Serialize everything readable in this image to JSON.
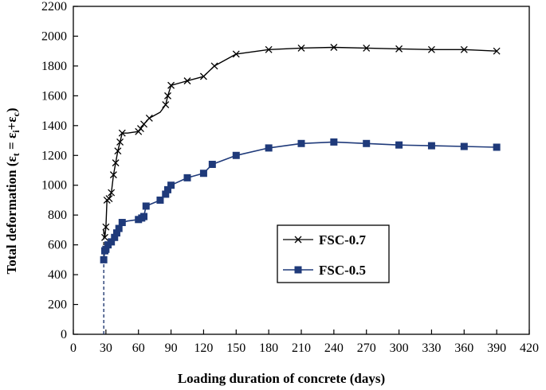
{
  "chart_data": {
    "type": "line",
    "title": "",
    "xlabel": "Loading duration of concrete (days)",
    "ylabel": {
      "prefix": "Total deformation (",
      "eps": "ε",
      "sub_t": "t",
      "eq": " = ",
      "sub_i": "i",
      "plus": "+",
      "sub_c": "c",
      "suffix": ")"
    },
    "xlim": [
      0,
      420
    ],
    "ylim": [
      0,
      2200
    ],
    "x_ticks": [
      "0",
      "30",
      "60",
      "90",
      "120",
      "150",
      "180",
      "210",
      "240",
      "270",
      "300",
      "330",
      "360",
      "390",
      "420"
    ],
    "y_ticks": [
      "0",
      "200",
      "400",
      "600",
      "800",
      "1000",
      "1200",
      "1400",
      "1600",
      "1800",
      "2000",
      "2200"
    ],
    "grid": false,
    "legend_position": "center-right",
    "series": [
      {
        "name": "FSC-0.7",
        "color": "#000000",
        "marker": "x",
        "points": [
          [
            28,
            0
          ],
          [
            28,
            700
          ],
          [
            29,
            650
          ],
          [
            30,
            720
          ],
          [
            31,
            900
          ],
          [
            33,
            910
          ],
          [
            35,
            950
          ],
          [
            37,
            1070
          ],
          [
            39,
            1150
          ],
          [
            41,
            1230
          ],
          [
            43,
            1290
          ],
          [
            45,
            1350
          ],
          [
            50,
            1350
          ],
          [
            55,
            1355
          ],
          [
            60,
            1360
          ],
          [
            62,
            1380
          ],
          [
            65,
            1410
          ],
          [
            70,
            1450
          ],
          [
            80,
            1490
          ],
          [
            85,
            1540
          ],
          [
            87,
            1600
          ],
          [
            90,
            1670
          ],
          [
            100,
            1690
          ],
          [
            105,
            1700
          ],
          [
            115,
            1720
          ],
          [
            120,
            1730
          ],
          [
            130,
            1800
          ],
          [
            150,
            1880
          ],
          [
            180,
            1910
          ],
          [
            210,
            1920
          ],
          [
            240,
            1925
          ],
          [
            270,
            1920
          ],
          [
            300,
            1915
          ],
          [
            330,
            1910
          ],
          [
            360,
            1910
          ],
          [
            390,
            1900
          ]
        ],
        "markers": [
          [
            29,
            650
          ],
          [
            30,
            720
          ],
          [
            31,
            900
          ],
          [
            33,
            910
          ],
          [
            35,
            950
          ],
          [
            37,
            1070
          ],
          [
            39,
            1150
          ],
          [
            41,
            1230
          ],
          [
            43,
            1290
          ],
          [
            45,
            1350
          ],
          [
            60,
            1360
          ],
          [
            62,
            1380
          ],
          [
            65,
            1410
          ],
          [
            70,
            1450
          ],
          [
            85,
            1540
          ],
          [
            87,
            1600
          ],
          [
            90,
            1670
          ],
          [
            105,
            1700
          ],
          [
            120,
            1730
          ],
          [
            130,
            1800
          ],
          [
            150,
            1880
          ],
          [
            180,
            1910
          ],
          [
            210,
            1920
          ],
          [
            240,
            1925
          ],
          [
            270,
            1920
          ],
          [
            300,
            1915
          ],
          [
            330,
            1910
          ],
          [
            360,
            1910
          ],
          [
            390,
            1900
          ]
        ]
      },
      {
        "name": "FSC-0.5",
        "color": "#1f3a7a",
        "marker": "square",
        "points": [
          [
            28,
            0
          ],
          [
            28,
            500
          ],
          [
            29,
            560
          ],
          [
            30,
            570
          ],
          [
            32,
            600
          ],
          [
            35,
            620
          ],
          [
            38,
            650
          ],
          [
            40,
            680
          ],
          [
            42,
            710
          ],
          [
            45,
            750
          ],
          [
            50,
            760
          ],
          [
            60,
            770
          ],
          [
            63,
            780
          ],
          [
            65,
            790
          ],
          [
            67,
            860
          ],
          [
            80,
            900
          ],
          [
            85,
            940
          ],
          [
            87,
            970
          ],
          [
            90,
            1000
          ],
          [
            105,
            1050
          ],
          [
            120,
            1080
          ],
          [
            128,
            1140
          ],
          [
            150,
            1200
          ],
          [
            180,
            1250
          ],
          [
            210,
            1280
          ],
          [
            240,
            1290
          ],
          [
            270,
            1280
          ],
          [
            300,
            1270
          ],
          [
            330,
            1265
          ],
          [
            360,
            1260
          ],
          [
            390,
            1255
          ]
        ],
        "markers": [
          [
            28,
            500
          ],
          [
            29,
            560
          ],
          [
            30,
            570
          ],
          [
            32,
            600
          ],
          [
            35,
            620
          ],
          [
            38,
            650
          ],
          [
            40,
            680
          ],
          [
            42,
            710
          ],
          [
            45,
            750
          ],
          [
            60,
            770
          ],
          [
            63,
            780
          ],
          [
            65,
            790
          ],
          [
            67,
            860
          ],
          [
            80,
            900
          ],
          [
            85,
            940
          ],
          [
            87,
            970
          ],
          [
            90,
            1000
          ],
          [
            105,
            1050
          ],
          [
            120,
            1080
          ],
          [
            128,
            1140
          ],
          [
            150,
            1200
          ],
          [
            180,
            1250
          ],
          [
            210,
            1280
          ],
          [
            240,
            1290
          ],
          [
            270,
            1280
          ],
          [
            300,
            1270
          ],
          [
            330,
            1265
          ],
          [
            360,
            1260
          ],
          [
            390,
            1255
          ]
        ]
      }
    ]
  }
}
